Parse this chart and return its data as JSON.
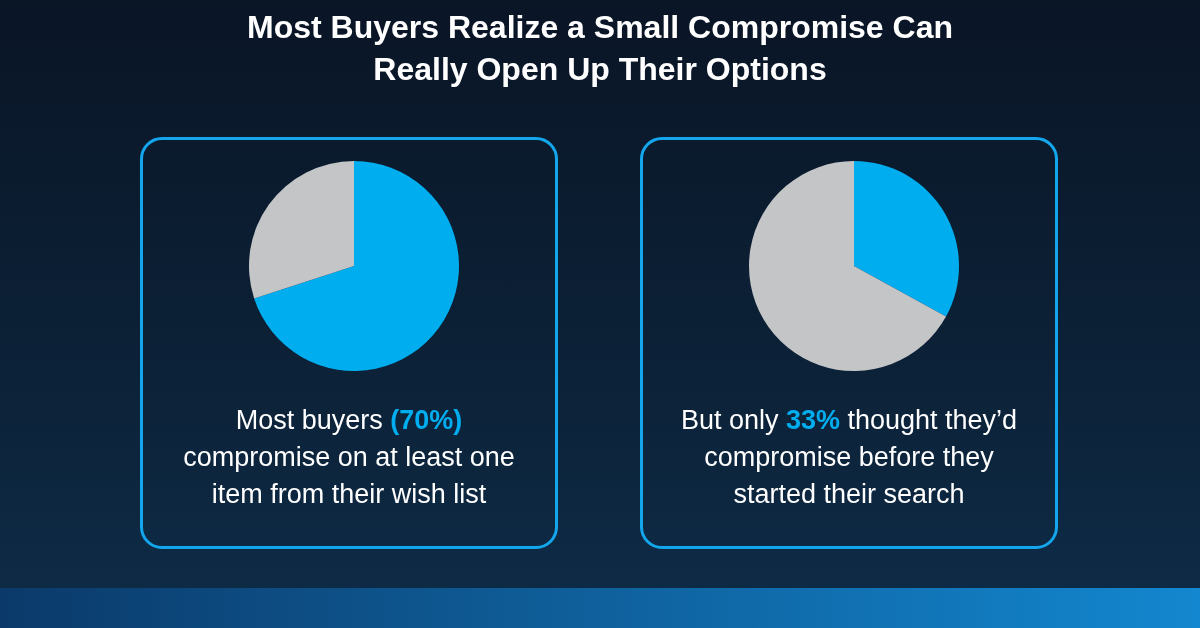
{
  "chart_data": [
    {
      "type": "pie",
      "title": "Most Buyers Realize a Small Compromise Can Really Open Up Their Options",
      "categories": [
        null,
        null
      ],
      "values": [
        70,
        30
      ],
      "colors": [
        "#00adef",
        "#c4c5c7"
      ],
      "annotations": [
        "Most buyers ",
        "(70%)",
        " compromise on at least one item from their wish list"
      ]
    },
    {
      "type": "pie",
      "categories": [
        null,
        null
      ],
      "values": [
        33,
        67
      ],
      "colors": [
        "#00adef",
        "#c4c5c7"
      ],
      "annotations": [
        "But only ",
        "33%",
        " thought they’d compromise before they started their search"
      ]
    }
  ]
}
